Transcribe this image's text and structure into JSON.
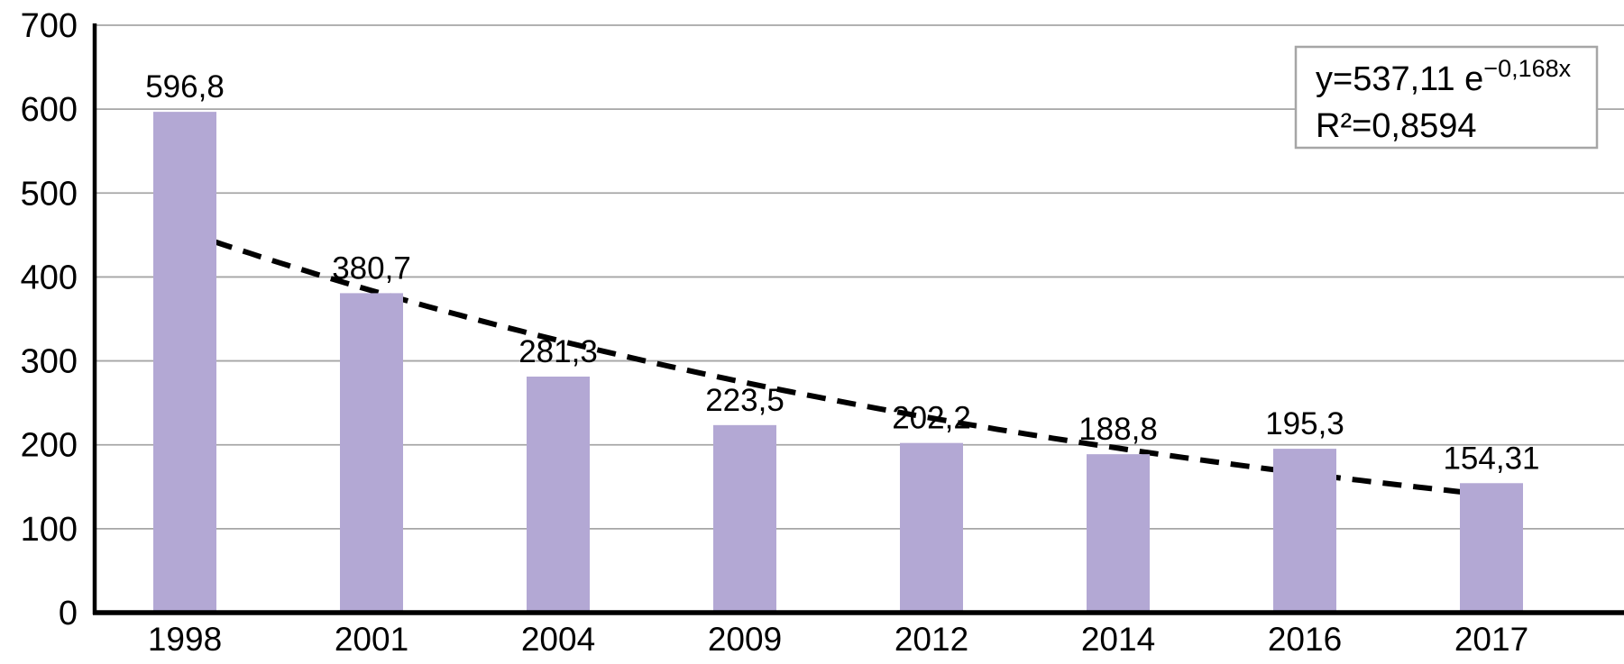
{
  "chart_data": {
    "type": "bar",
    "categories": [
      "1998",
      "2001",
      "2004",
      "2009",
      "2012",
      "2014",
      "2016",
      "2017"
    ],
    "values": [
      596.8,
      380.7,
      281.3,
      223.5,
      202.2,
      188.8,
      195.3,
      154.31
    ],
    "value_labels": [
      "596,8",
      "380,7",
      "281,3",
      "223,5",
      "202,2",
      "188,8",
      "195,3",
      "154,31"
    ],
    "title": "",
    "xlabel": "",
    "ylabel": "",
    "ylim": [
      0,
      700
    ],
    "ytick_step": 100,
    "ytick_labels": [
      "0",
      "100",
      "200",
      "300",
      "400",
      "500",
      "600",
      "700"
    ],
    "grid": true,
    "legend": false,
    "bar_color": "#b3a8d4",
    "gridline_color": "#a6a6a6",
    "axis_color": "#000000",
    "trendline": {
      "type": "exponential",
      "a": 537.11,
      "b": -0.168,
      "style": "dashed",
      "color": "#000000",
      "equation_base": "y=537,11 e",
      "equation_exponent": "−0,168x",
      "r_squared_label": "R²=0,8594"
    }
  }
}
